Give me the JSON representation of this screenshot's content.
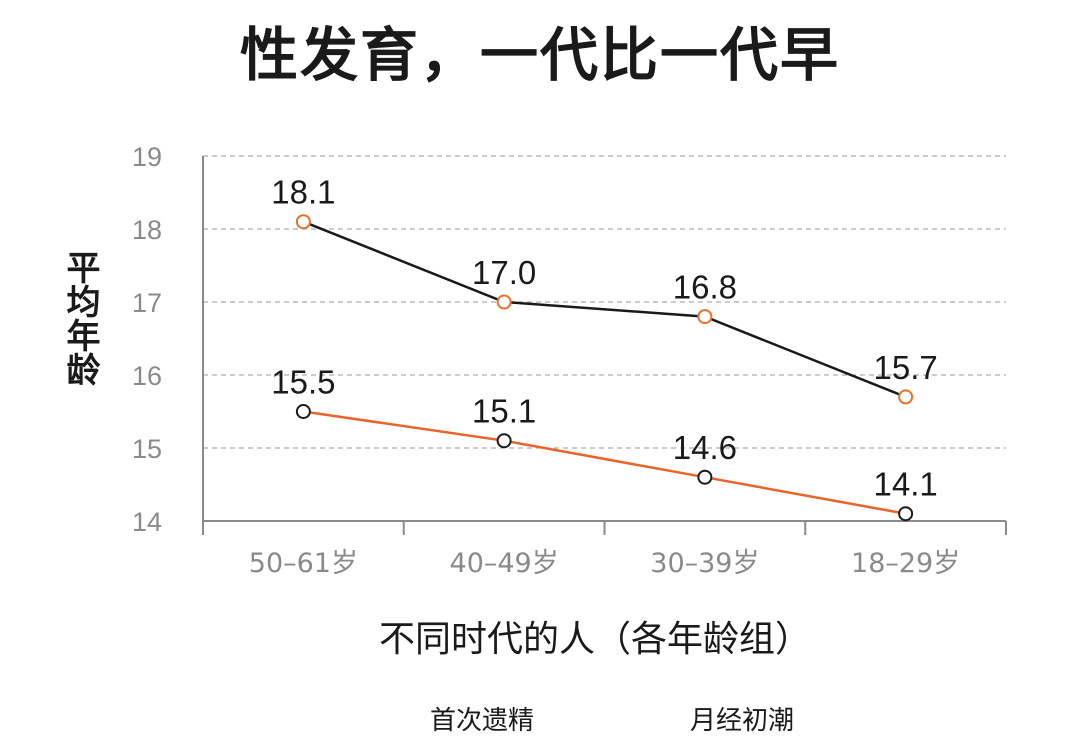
{
  "chart_data": {
    "type": "line",
    "title": "性发育，一代比一代早",
    "xlabel": "不同时代的人（各年龄组）",
    "ylabel": "平均年龄",
    "categories": [
      "50–61岁",
      "40–49岁",
      "30–39岁",
      "18–29岁"
    ],
    "ylim": [
      14,
      19
    ],
    "yticks": [
      "14",
      "15",
      "16",
      "17",
      "18",
      "19"
    ],
    "grid": true,
    "series": [
      {
        "name": "首次遗精",
        "values": [
          18.1,
          17.0,
          16.8,
          15.7
        ],
        "labels": [
          "18.1",
          "17.0",
          "16.8",
          "15.7"
        ],
        "line_color": "#1a1a1a",
        "marker_color": "#e8702a"
      },
      {
        "name": "月经初潮",
        "values": [
          15.5,
          15.1,
          14.6,
          14.1
        ],
        "labels": [
          "15.5",
          "15.1",
          "14.6",
          "14.1"
        ],
        "line_color": "#e8642a",
        "marker_color": "#1a1a1a"
      }
    ],
    "legend_position": "bottom"
  }
}
